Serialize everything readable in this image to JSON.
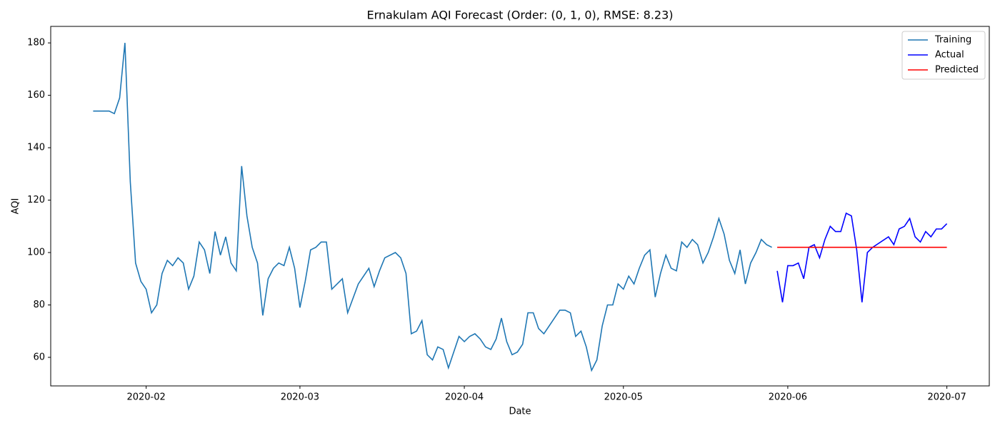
{
  "chart_data": {
    "type": "line",
    "title": "Ernakulam AQI Forecast (Order: (0, 1, 0), RMSE: 8.23)",
    "x_label": "Date",
    "y_label": "AQI",
    "xlim": [
      "2020-01-14",
      "2020-07-09"
    ],
    "ylim": [
      49.1,
      186.3
    ],
    "xticks": [
      {
        "value": "2020-02-01",
        "label": "2020-02"
      },
      {
        "value": "2020-03-01",
        "label": "2020-03"
      },
      {
        "value": "2020-04-01",
        "label": "2020-04"
      },
      {
        "value": "2020-05-01",
        "label": "2020-05"
      },
      {
        "value": "2020-06-01",
        "label": "2020-06"
      },
      {
        "value": "2020-07-01",
        "label": "2020-07"
      }
    ],
    "yticks": [
      60,
      80,
      100,
      120,
      140,
      160,
      180
    ],
    "grid": false,
    "legend": "upper right",
    "series": [
      {
        "name": "Training",
        "color": "#1f77b4",
        "x": [
          "2020-01-22",
          "2020-01-25",
          "2020-01-26",
          "2020-01-27",
          "2020-01-28",
          "2020-01-29",
          "2020-01-30",
          "2020-01-31",
          "2020-02-01",
          "2020-02-02",
          "2020-02-03",
          "2020-02-04",
          "2020-02-05",
          "2020-02-06",
          "2020-02-07",
          "2020-02-08",
          "2020-02-09",
          "2020-02-10",
          "2020-02-11",
          "2020-02-12",
          "2020-02-13",
          "2020-02-14",
          "2020-02-15",
          "2020-02-16",
          "2020-02-17",
          "2020-02-18",
          "2020-02-19",
          "2020-02-20",
          "2020-02-21",
          "2020-02-22",
          "2020-02-23",
          "2020-02-24",
          "2020-02-25",
          "2020-02-26",
          "2020-02-27",
          "2020-02-28",
          "2020-02-29",
          "2020-03-01",
          "2020-03-02",
          "2020-03-03",
          "2020-03-04",
          "2020-03-05",
          "2020-03-06",
          "2020-03-07",
          "2020-03-09",
          "2020-03-10",
          "2020-03-12",
          "2020-03-14",
          "2020-03-15",
          "2020-03-16",
          "2020-03-17",
          "2020-03-19",
          "2020-03-20",
          "2020-03-21",
          "2020-03-22",
          "2020-03-23",
          "2020-03-24",
          "2020-03-25",
          "2020-03-26",
          "2020-03-27",
          "2020-03-28",
          "2020-03-29",
          "2020-03-31",
          "2020-04-01",
          "2020-04-02",
          "2020-04-03",
          "2020-04-04",
          "2020-04-05",
          "2020-04-06",
          "2020-04-07",
          "2020-04-08",
          "2020-04-09",
          "2020-04-10",
          "2020-04-11",
          "2020-04-12",
          "2020-04-13",
          "2020-04-14",
          "2020-04-15",
          "2020-04-16",
          "2020-04-19",
          "2020-04-20",
          "2020-04-21",
          "2020-04-22",
          "2020-04-23",
          "2020-04-24",
          "2020-04-25",
          "2020-04-26",
          "2020-04-27",
          "2020-04-28",
          "2020-04-29",
          "2020-04-30",
          "2020-05-01",
          "2020-05-02",
          "2020-05-03",
          "2020-05-04",
          "2020-05-05",
          "2020-05-06",
          "2020-05-07",
          "2020-05-08",
          "2020-05-09",
          "2020-05-10",
          "2020-05-11",
          "2020-05-12",
          "2020-05-13",
          "2020-05-14",
          "2020-05-15",
          "2020-05-16",
          "2020-05-17",
          "2020-05-18",
          "2020-05-19",
          "2020-05-20",
          "2020-05-21",
          "2020-05-22",
          "2020-05-23",
          "2020-05-24",
          "2020-05-25",
          "2020-05-26",
          "2020-05-27",
          "2020-05-28",
          "2020-05-29"
        ],
        "values": [
          154,
          154,
          153,
          159,
          180,
          127,
          96,
          89,
          86,
          77,
          80,
          92,
          97,
          95,
          98,
          96,
          86,
          91,
          104,
          101,
          92,
          108,
          99,
          106,
          96,
          93,
          133,
          114,
          102,
          96,
          76,
          90,
          94,
          96,
          95,
          102,
          94,
          79,
          89,
          101,
          102,
          104,
          104,
          86,
          90,
          77,
          88,
          94,
          87,
          93,
          98,
          100,
          98,
          92,
          69,
          70,
          74,
          61,
          59,
          64,
          63,
          56,
          68,
          66,
          68,
          69,
          67,
          64,
          63,
          67,
          75,
          66,
          61,
          62,
          65,
          77,
          77,
          71,
          69,
          78,
          78,
          77,
          68,
          70,
          64,
          55,
          59,
          72,
          80,
          80,
          88,
          86,
          91,
          88,
          94,
          99,
          101,
          83,
          92,
          99,
          94,
          93,
          104,
          102,
          105,
          103,
          96,
          100,
          106,
          113,
          107,
          97,
          92,
          101,
          88,
          96,
          100,
          105,
          103,
          102
        ]
      },
      {
        "name": "Actual",
        "color": "#0000ff",
        "x": [
          "2020-05-30",
          "2020-05-31",
          "2020-06-01",
          "2020-06-02",
          "2020-06-03",
          "2020-06-04",
          "2020-06-05",
          "2020-06-06",
          "2020-06-07",
          "2020-06-08",
          "2020-06-09",
          "2020-06-10",
          "2020-06-11",
          "2020-06-12",
          "2020-06-13",
          "2020-06-14",
          "2020-06-15",
          "2020-06-16",
          "2020-06-17",
          "2020-06-20",
          "2020-06-21",
          "2020-06-22",
          "2020-06-23",
          "2020-06-24",
          "2020-06-25",
          "2020-06-26",
          "2020-06-27",
          "2020-06-28",
          "2020-06-29",
          "2020-06-30",
          "2020-07-01"
        ],
        "values": [
          93,
          81,
          95,
          95,
          96,
          90,
          102,
          103,
          98,
          105,
          110,
          108,
          108,
          115,
          114,
          101,
          81,
          100,
          102,
          106,
          103,
          109,
          110,
          113,
          106,
          104,
          108,
          106,
          109,
          109,
          111
        ]
      },
      {
        "name": "Predicted",
        "color": "#ff0000",
        "x": [
          "2020-05-30",
          "2020-07-01"
        ],
        "values": [
          102,
          102
        ]
      }
    ]
  }
}
